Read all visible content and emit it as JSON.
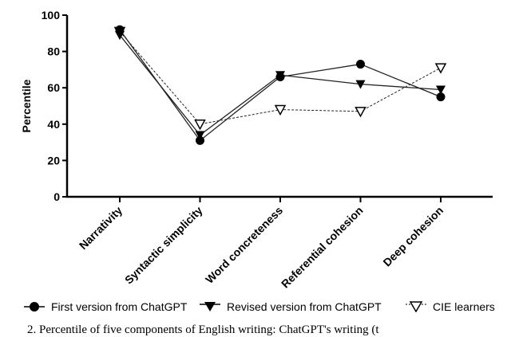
{
  "chart_data": {
    "type": "line",
    "title": "",
    "xlabel": "",
    "ylabel": "Percentile",
    "ylim": [
      0,
      100
    ],
    "yticks": [
      0,
      20,
      40,
      60,
      80,
      100
    ],
    "categories": [
      "Narrativity",
      "Syntactic simplicity",
      "Word concreteness",
      "Referential cohesion",
      "Deep cohesion"
    ],
    "series": [
      {
        "name": "First version from ChatGPT",
        "marker": "circle",
        "line": "solid",
        "values": [
          92,
          31,
          66,
          73,
          55
        ]
      },
      {
        "name": "Revised version from ChatGPT",
        "marker": "triangle-down-filled",
        "line": "solid",
        "values": [
          89,
          34,
          67,
          62,
          59
        ]
      },
      {
        "name": "CIE learners",
        "marker": "triangle-down-open",
        "line": "dashed",
        "values": [
          91,
          40,
          48,
          47,
          71
        ]
      }
    ],
    "legend_position": "bottom",
    "grid": false
  },
  "caption": "2. Percentile of five components of English writing: ChatGPT's writing (t"
}
